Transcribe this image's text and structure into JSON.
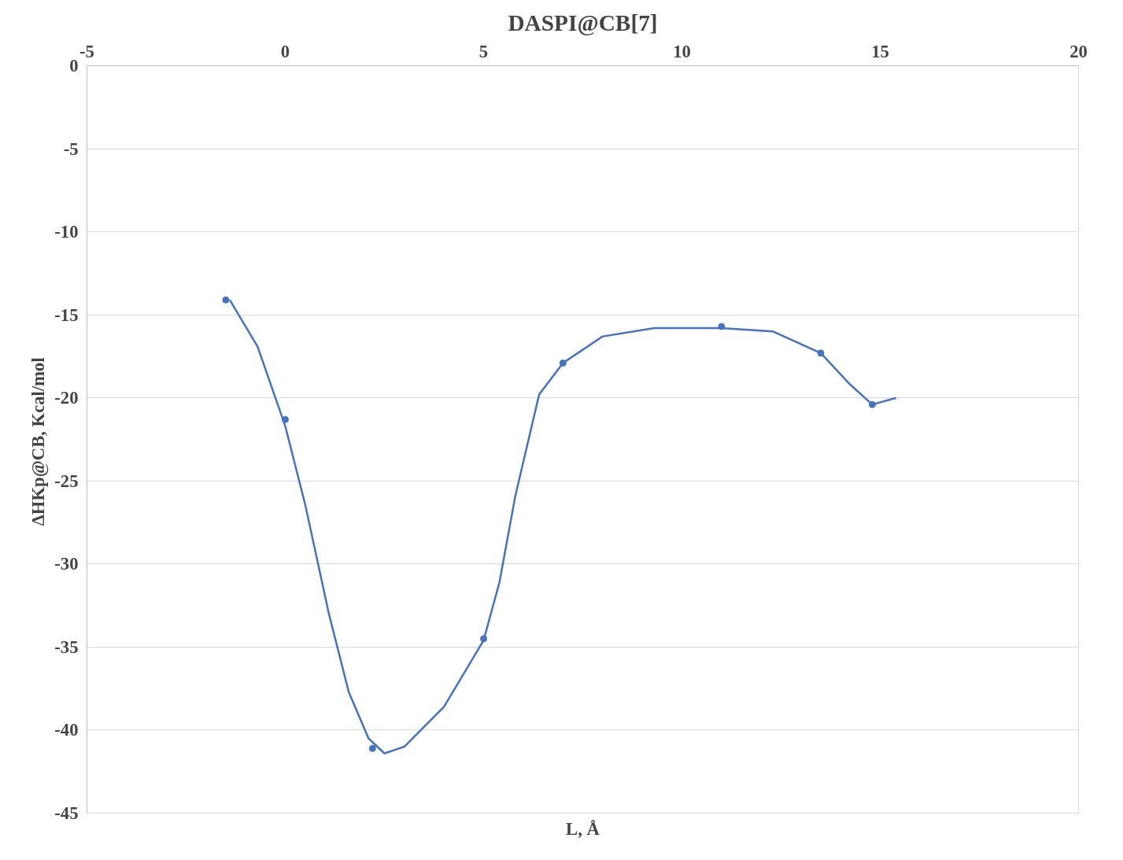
{
  "chart_data": {
    "type": "scatter",
    "title": "DASPI@CB[7]",
    "xlabel": "L, Å",
    "ylabel": "ΔHKp@CB,  Kcal/mol",
    "xlim": [
      -5,
      20
    ],
    "xticks": [
      -5,
      0,
      5,
      10,
      15,
      20
    ],
    "ylim": [
      -45,
      0
    ],
    "yticks": [
      0,
      -5,
      -10,
      -15,
      -20,
      -25,
      -30,
      -35,
      -40,
      -45
    ],
    "grid": "y",
    "series": [
      {
        "marker": "circle",
        "color": "#4472c4",
        "x": [
          -1.5,
          0,
          2.2,
          5.0,
          7.0,
          11.0,
          13.5,
          14.8
        ],
        "values": [
          -14.1,
          -21.3,
          -41.1,
          -34.5,
          -17.9,
          -15.7,
          -17.3,
          -20.4
        ]
      },
      {
        "type": "line",
        "color": "#4472c4",
        "line_style": "solid",
        "x": [
          -1.4,
          -0.7,
          0,
          0.5,
          1.1,
          1.6,
          2.1,
          2.5,
          3.0,
          4.0,
          5.0,
          5.4,
          5.8,
          6.4,
          7.0,
          8.0,
          9.3,
          11.0,
          12.3,
          13.5,
          14.2,
          14.8,
          15.4
        ],
        "values": [
          -14.1,
          -16.9,
          -21.7,
          -26.4,
          -33.0,
          -37.7,
          -40.5,
          -41.4,
          -41.0,
          -38.6,
          -34.6,
          -31.1,
          -25.9,
          -19.8,
          -17.9,
          -16.3,
          -15.8,
          -15.8,
          -16.0,
          -17.3,
          -19.1,
          -20.4,
          -20.0
        ]
      }
    ]
  }
}
